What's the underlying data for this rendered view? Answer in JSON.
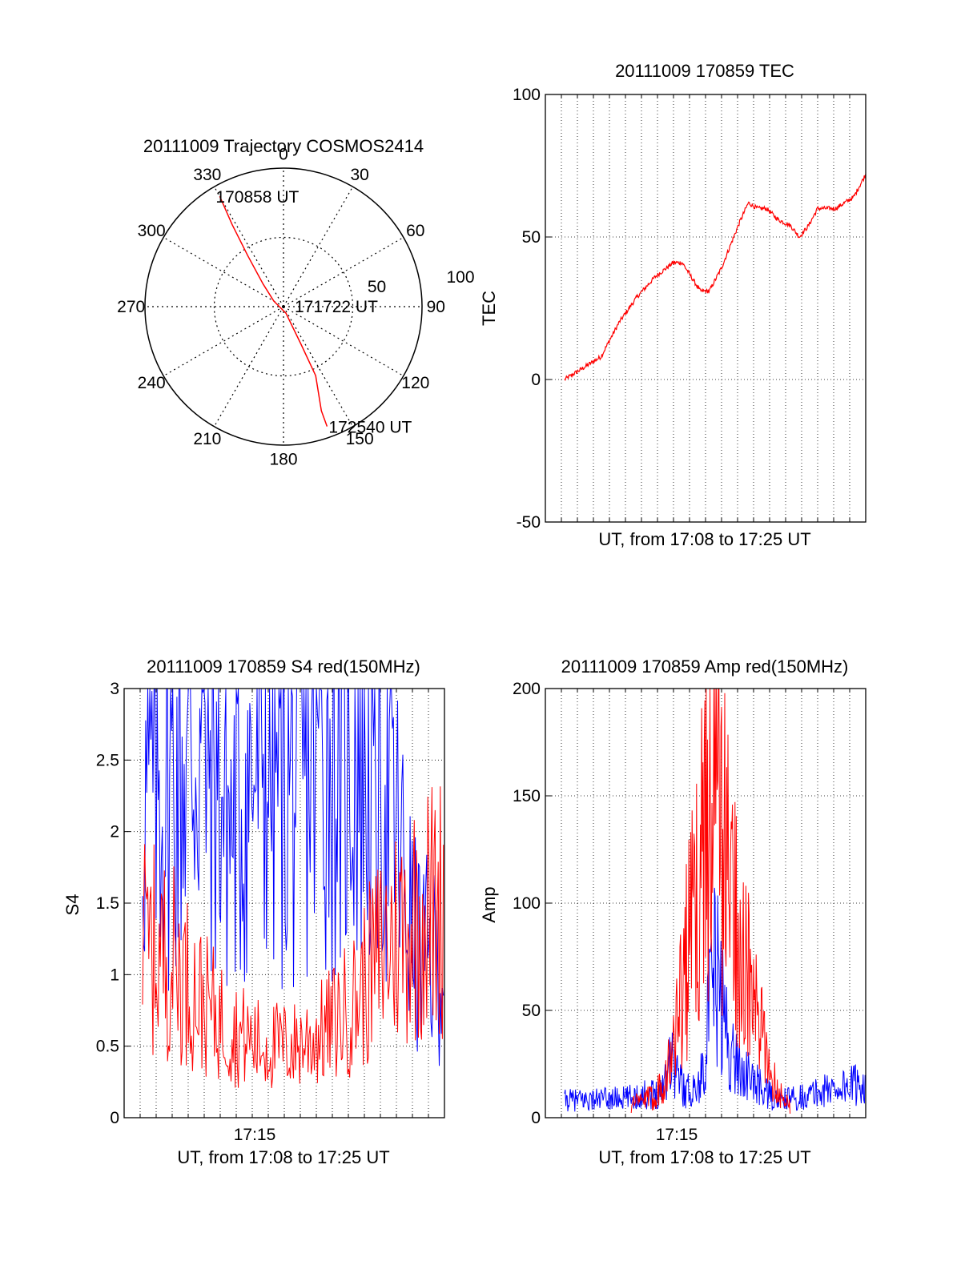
{
  "chart_data": [
    {
      "type": "polar",
      "title": "20111009 Trajectory COSMOS2414",
      "angle_labels": [
        "0",
        "30",
        "60",
        "90",
        "120",
        "150",
        "180",
        "210",
        "240",
        "270",
        "300",
        "330"
      ],
      "radius_labels": [
        "50",
        "100"
      ],
      "rlim": [
        0,
        100
      ],
      "grid": true,
      "series": [
        {
          "color": "#ff0000",
          "points": [
            {
              "azimuth": 330,
              "radius": 92
            },
            {
              "azimuth": 328,
              "radius": 70
            },
            {
              "azimuth": 325,
              "radius": 45
            },
            {
              "azimuth": 318,
              "radius": 22
            },
            {
              "azimuth": 300,
              "radius": 8
            },
            {
              "azimuth": 160,
              "radius": 5
            },
            {
              "azimuth": 155,
              "radius": 30
            },
            {
              "azimuth": 155,
              "radius": 55
            },
            {
              "azimuth": 160,
              "radius": 80
            },
            {
              "azimuth": 160,
              "radius": 92
            }
          ]
        }
      ],
      "annotations": [
        {
          "text": "170858 UT",
          "at": "start"
        },
        {
          "text": "171722 UT",
          "at": "center"
        },
        {
          "text": "172540 UT",
          "at": "end"
        }
      ]
    },
    {
      "type": "line",
      "title": "20111009 170859 TEC",
      "xlabel": "UT, from 17:08 to 17:25 UT",
      "ylabel": "TEC",
      "ylim": [
        -50,
        100
      ],
      "yticks": [
        "-50",
        "0",
        "50",
        "100"
      ],
      "xlim_seconds": [
        539,
        1540
      ],
      "grid": true,
      "series": [
        {
          "color": "#ff0000",
          "points": [
            [
              539,
              0
            ],
            [
              600,
              4
            ],
            [
              660,
              8
            ],
            [
              720,
              20
            ],
            [
              780,
              29
            ],
            [
              840,
              36
            ],
            [
              900,
              41
            ],
            [
              930,
              41
            ],
            [
              960,
              36
            ],
            [
              990,
              31
            ],
            [
              1020,
              31
            ],
            [
              1060,
              39
            ],
            [
              1120,
              55
            ],
            [
              1150,
              62
            ],
            [
              1180,
              60
            ],
            [
              1210,
              60
            ],
            [
              1250,
              56
            ],
            [
              1290,
              54
            ],
            [
              1320,
              50
            ],
            [
              1350,
              54
            ],
            [
              1380,
              60
            ],
            [
              1440,
              60
            ],
            [
              1500,
              64
            ],
            [
              1540,
              72
            ]
          ]
        }
      ]
    },
    {
      "type": "line",
      "title": "20111009 170859 S4 red(150MHz)",
      "xlabel": "UT, from 17:08 to 17:25 UT",
      "ylabel": "S4",
      "ylim": [
        0,
        3
      ],
      "yticks": [
        "0",
        "0.5",
        "1",
        "1.5",
        "2",
        "2.5",
        "3"
      ],
      "xticks": [
        "17:15"
      ],
      "grid": true,
      "series": [
        {
          "color": "#0000ff",
          "envelope": [
            [
              0,
              2.2
            ],
            [
              0.1,
              2.4
            ],
            [
              0.2,
              2.7
            ],
            [
              0.3,
              2.0
            ],
            [
              0.4,
              2.6
            ],
            [
              0.5,
              2.3
            ],
            [
              0.6,
              2.7
            ],
            [
              0.7,
              2.6
            ],
            [
              0.8,
              2.5
            ],
            [
              0.9,
              1.2
            ],
            [
              1.0,
              1.0
            ]
          ]
        },
        {
          "color": "#ff0000",
          "envelope": [
            [
              0,
              1.2
            ],
            [
              0.1,
              1.1
            ],
            [
              0.2,
              0.8
            ],
            [
              0.3,
              0.6
            ],
            [
              0.4,
              0.5
            ],
            [
              0.5,
              0.5
            ],
            [
              0.6,
              0.6
            ],
            [
              0.7,
              0.8
            ],
            [
              0.8,
              1.2
            ],
            [
              0.9,
              1.4
            ],
            [
              1.0,
              1.5
            ]
          ]
        }
      ]
    },
    {
      "type": "line",
      "title": "20111009 170859 Amp red(150MHz)",
      "xlabel": "UT, from 17:08 to 17:25 UT",
      "ylabel": "Amp",
      "ylim": [
        0,
        200
      ],
      "yticks": [
        "0",
        "50",
        "100",
        "150",
        "200"
      ],
      "xticks": [
        "17:15"
      ],
      "grid": true,
      "series": [
        {
          "color": "#0000ff",
          "envelope": [
            [
              0,
              8
            ],
            [
              0.2,
              9
            ],
            [
              0.32,
              12
            ],
            [
              0.35,
              30
            ],
            [
              0.4,
              12
            ],
            [
              0.45,
              15
            ],
            [
              0.5,
              70
            ],
            [
              0.55,
              30
            ],
            [
              0.6,
              20
            ],
            [
              0.7,
              8
            ],
            [
              0.8,
              10
            ],
            [
              0.9,
              14
            ],
            [
              1.0,
              16
            ]
          ]
        },
        {
          "color": "#ff0000",
          "envelope": [
            [
              0.22,
              6
            ],
            [
              0.3,
              10
            ],
            [
              0.35,
              25
            ],
            [
              0.4,
              70
            ],
            [
              0.45,
              110
            ],
            [
              0.48,
              160
            ],
            [
              0.5,
              150
            ],
            [
              0.55,
              110
            ],
            [
              0.6,
              70
            ],
            [
              0.65,
              40
            ],
            [
              0.7,
              15
            ],
            [
              0.75,
              5
            ]
          ]
        }
      ]
    }
  ]
}
